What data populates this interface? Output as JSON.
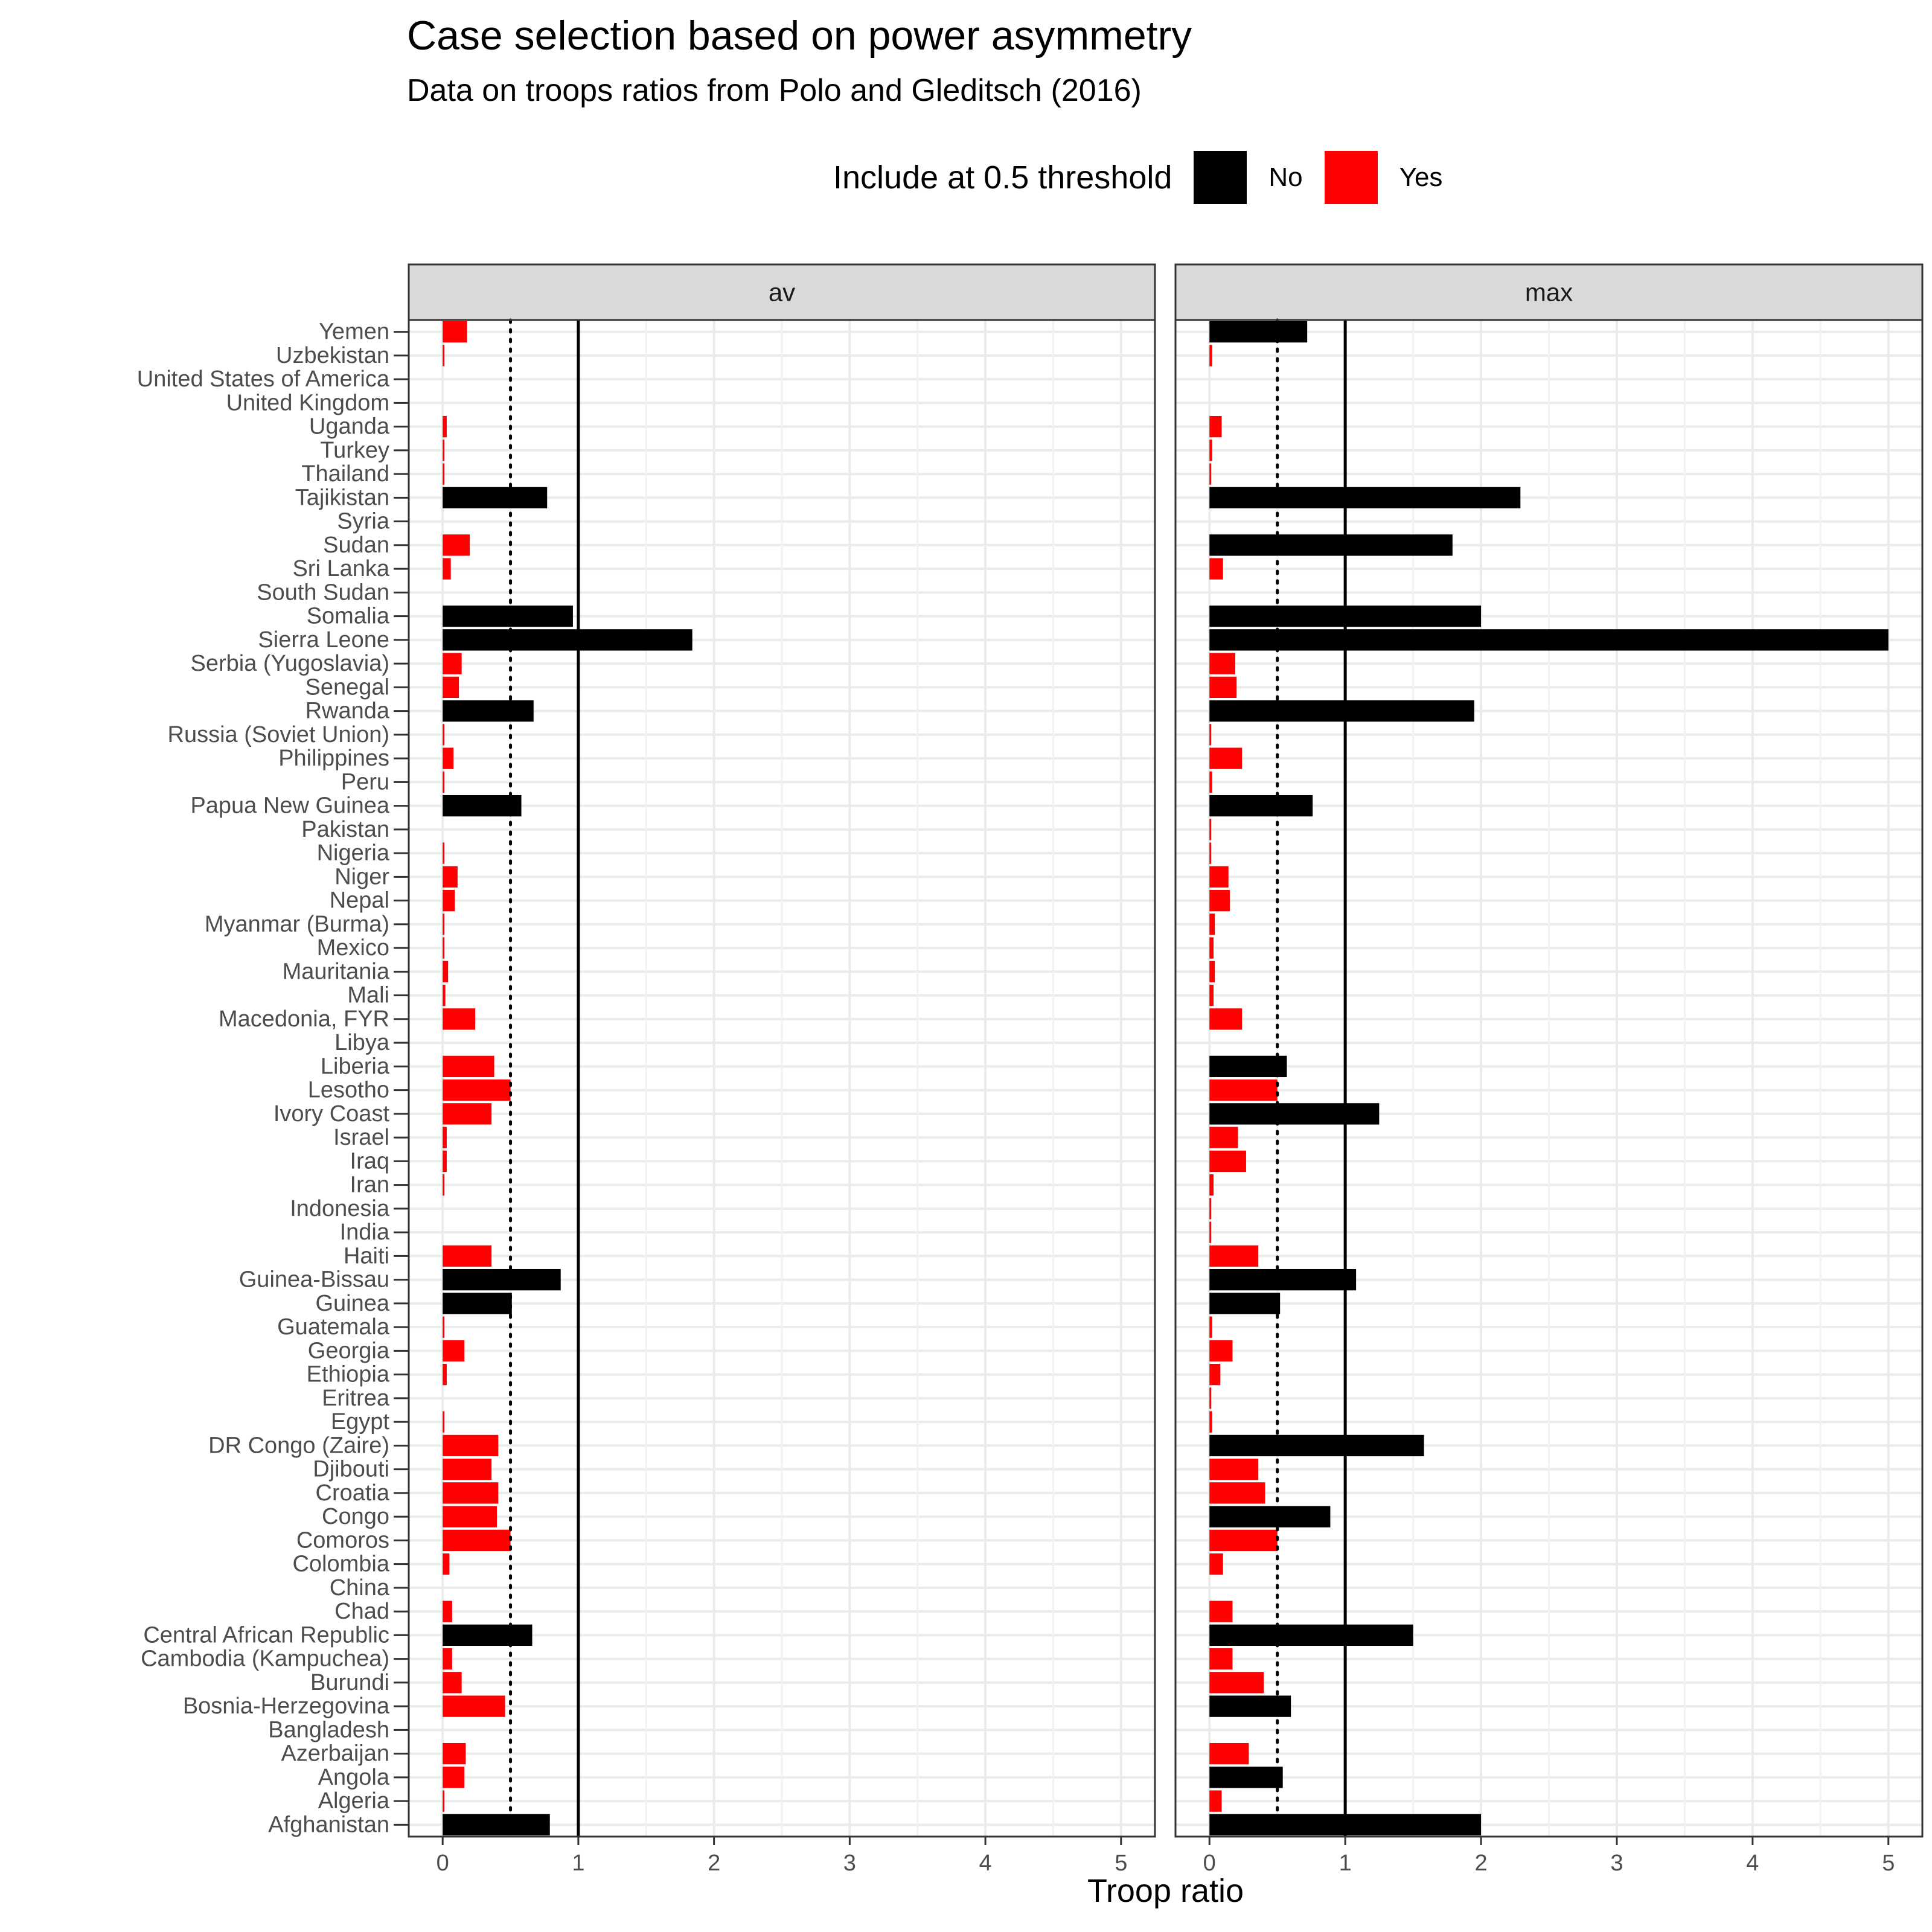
{
  "chart_data": {
    "type": "bar",
    "orientation": "horizontal",
    "title": "Case selection based on power asymmetry",
    "subtitle": "Data on troops ratios from Polo and Gleditsch (2016)",
    "xlabel": "Troop ratio",
    "ylabel": "",
    "xlim": [
      -0.25,
      5.25
    ],
    "x_ticks": [
      0,
      1,
      2,
      3,
      4,
      5
    ],
    "reference_lines": [
      {
        "x": 0.5,
        "style": "dotted"
      },
      {
        "x": 1,
        "style": "solid"
      }
    ],
    "legend": {
      "title": "Include at 0.5 threshold",
      "placement": "top",
      "entries": [
        {
          "label": "No",
          "color": "#000000"
        },
        {
          "label": "Yes",
          "color": "#ff0000"
        }
      ]
    },
    "grid": true,
    "categories": [
      "Yemen",
      "Uzbekistan",
      "United States of America",
      "United Kingdom",
      "Uganda",
      "Turkey",
      "Thailand",
      "Tajikistan",
      "Syria",
      "Sudan",
      "Sri Lanka",
      "South Sudan",
      "Somalia",
      "Sierra Leone",
      "Serbia (Yugoslavia)",
      "Senegal",
      "Rwanda",
      "Russia (Soviet Union)",
      "Philippines",
      "Peru",
      "Papua New Guinea",
      "Pakistan",
      "Nigeria",
      "Niger",
      "Nepal",
      "Myanmar (Burma)",
      "Mexico",
      "Mauritania",
      "Mali",
      "Macedonia, FYR",
      "Libya",
      "Liberia",
      "Lesotho",
      "Ivory Coast",
      "Israel",
      "Iraq",
      "Iran",
      "Indonesia",
      "India",
      "Haiti",
      "Guinea-Bissau",
      "Guinea",
      "Guatemala",
      "Georgia",
      "Ethiopia",
      "Eritrea",
      "Egypt",
      "DR Congo (Zaire)",
      "Djibouti",
      "Croatia",
      "Congo",
      "Comoros",
      "Colombia",
      "China",
      "Chad",
      "Central African Republic",
      "Cambodia (Kampuchea)",
      "Burundi",
      "Bosnia-Herzegovina",
      "Bangladesh",
      "Azerbaijan",
      "Angola",
      "Algeria",
      "Afghanistan"
    ],
    "panels": [
      {
        "name": "av",
        "values": [
          0.18,
          0.01,
          0.0,
          0.0,
          0.03,
          0.01,
          0.01,
          0.77,
          0.0,
          0.2,
          0.06,
          0.0,
          0.96,
          1.84,
          0.14,
          0.12,
          0.67,
          0.01,
          0.08,
          0.01,
          0.58,
          0.0,
          0.01,
          0.11,
          0.09,
          0.01,
          0.01,
          0.04,
          0.02,
          0.24,
          0.0,
          0.38,
          0.5,
          0.36,
          0.03,
          0.03,
          0.01,
          0.0,
          0.0,
          0.36,
          0.87,
          0.51,
          0.01,
          0.16,
          0.03,
          0.0,
          0.01,
          0.41,
          0.36,
          0.41,
          0.4,
          0.5,
          0.05,
          0.0,
          0.07,
          0.66,
          0.07,
          0.14,
          0.46,
          0.0,
          0.17,
          0.16,
          0.01,
          0.79
        ],
        "include": [
          "Yes",
          "Yes",
          "Yes",
          "Yes",
          "Yes",
          "Yes",
          "Yes",
          "No",
          "Yes",
          "Yes",
          "Yes",
          "Yes",
          "No",
          "No",
          "Yes",
          "Yes",
          "No",
          "Yes",
          "Yes",
          "Yes",
          "No",
          "Yes",
          "Yes",
          "Yes",
          "Yes",
          "Yes",
          "Yes",
          "Yes",
          "Yes",
          "Yes",
          "Yes",
          "Yes",
          "Yes",
          "Yes",
          "Yes",
          "Yes",
          "Yes",
          "Yes",
          "Yes",
          "Yes",
          "No",
          "No",
          "Yes",
          "Yes",
          "Yes",
          "Yes",
          "Yes",
          "Yes",
          "Yes",
          "Yes",
          "Yes",
          "Yes",
          "Yes",
          "Yes",
          "Yes",
          "No",
          "Yes",
          "Yes",
          "Yes",
          "Yes",
          "Yes",
          "Yes",
          "Yes",
          "No"
        ]
      },
      {
        "name": "max",
        "values": [
          0.72,
          0.02,
          0.0,
          0.0,
          0.09,
          0.02,
          0.01,
          2.29,
          0.0,
          1.79,
          0.1,
          0.0,
          2.0,
          5.0,
          0.19,
          0.2,
          1.95,
          0.01,
          0.24,
          0.02,
          0.76,
          0.01,
          0.01,
          0.14,
          0.15,
          0.04,
          0.03,
          0.04,
          0.03,
          0.24,
          0.0,
          0.57,
          0.5,
          1.25,
          0.21,
          0.27,
          0.03,
          0.01,
          0.01,
          0.36,
          1.08,
          0.52,
          0.02,
          0.17,
          0.08,
          0.01,
          0.02,
          1.58,
          0.36,
          0.41,
          0.89,
          0.5,
          0.1,
          0.0,
          0.17,
          1.5,
          0.17,
          0.4,
          0.6,
          0.0,
          0.29,
          0.54,
          0.09,
          2.0
        ],
        "include": [
          "No",
          "Yes",
          "Yes",
          "Yes",
          "Yes",
          "Yes",
          "Yes",
          "No",
          "Yes",
          "No",
          "Yes",
          "Yes",
          "No",
          "No",
          "Yes",
          "Yes",
          "No",
          "Yes",
          "Yes",
          "Yes",
          "No",
          "Yes",
          "Yes",
          "Yes",
          "Yes",
          "Yes",
          "Yes",
          "Yes",
          "Yes",
          "Yes",
          "Yes",
          "No",
          "Yes",
          "No",
          "Yes",
          "Yes",
          "Yes",
          "Yes",
          "Yes",
          "Yes",
          "No",
          "No",
          "Yes",
          "Yes",
          "Yes",
          "Yes",
          "Yes",
          "No",
          "Yes",
          "Yes",
          "No",
          "Yes",
          "Yes",
          "Yes",
          "Yes",
          "No",
          "Yes",
          "Yes",
          "No",
          "Yes",
          "Yes",
          "No",
          "Yes",
          "No"
        ]
      }
    ]
  }
}
